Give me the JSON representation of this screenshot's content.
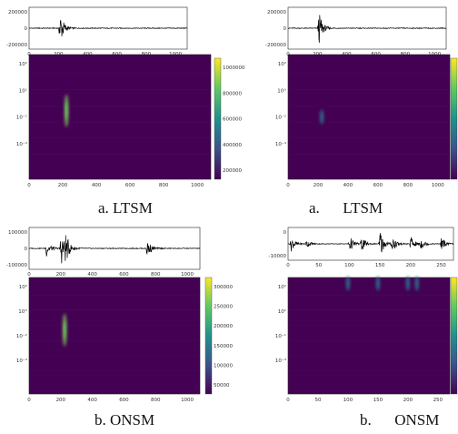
{
  "panels": [
    {
      "id": "tl",
      "caption": "a. LTSM",
      "wave_yticks": [
        "200000",
        "0",
        "-200000"
      ],
      "wave_xticks": [
        "0",
        "200",
        "400",
        "600",
        "800",
        "1000"
      ],
      "wave_bursts": [
        [
          210,
          1.0
        ]
      ],
      "spec_yticks": [
        "10²",
        "10¹",
        "10⁻¹",
        "10⁻³"
      ],
      "spec_xticks": [
        "0",
        "200",
        "400",
        "600",
        "800",
        "1000"
      ],
      "colorbar_ticks": [
        "1000000",
        "800000",
        "600000",
        "400000",
        "200000"
      ],
      "hotspots": [
        [
          222,
          0.55,
          1.0
        ]
      ]
    },
    {
      "id": "tr",
      "caption": "a.      LTSM",
      "wave_yticks": [
        "200000",
        "0",
        "-200000"
      ],
      "wave_xticks": [
        "0",
        "200",
        "400",
        "600",
        "800",
        "1000"
      ],
      "wave_bursts": [
        [
          210,
          0.9
        ]
      ],
      "spec_yticks": [
        "10²",
        "10°",
        "10⁻²",
        "10⁻⁴"
      ],
      "spec_xticks": [
        "0",
        "200",
        "400",
        "600",
        "800",
        "1000"
      ],
      "colorbar_ticks": [],
      "hotspots": [
        [
          225,
          0.5,
          0.5
        ]
      ]
    },
    {
      "id": "bl",
      "caption": "b. ONSM",
      "wave_yticks": [
        "100000",
        "0",
        "-100000"
      ],
      "wave_xticks": [
        "0",
        "200",
        "400",
        "600",
        "800",
        "1000"
      ],
      "wave_bursts": [
        [
          110,
          0.45
        ],
        [
          200,
          1.0
        ],
        [
          230,
          0.6
        ],
        [
          745,
          0.5
        ]
      ],
      "spec_yticks": [
        "10²",
        "10°",
        "10⁻²",
        "10⁻⁴"
      ],
      "spec_xticks": [
        "0",
        "200",
        "400",
        "600",
        "800",
        "1000"
      ],
      "colorbar_ticks": [
        "300000",
        "250000",
        "200000",
        "150000",
        "100000",
        "50000"
      ],
      "hotspots": [
        [
          225,
          0.55,
          0.85
        ]
      ]
    },
    {
      "id": "br",
      "caption": "b.      ONSM",
      "wave_yticks": [
        "0",
        "-10000"
      ],
      "wave_xticks": [
        "0",
        "50",
        "100",
        "150",
        "200",
        "250"
      ],
      "wave_bursts": [
        [
          5,
          0.5
        ],
        [
          30,
          0.3
        ],
        [
          100,
          0.6
        ],
        [
          120,
          0.5
        ],
        [
          150,
          1.0
        ],
        [
          170,
          0.7
        ],
        [
          200,
          0.55
        ],
        [
          215,
          0.5
        ],
        [
          250,
          0.45
        ]
      ],
      "spec_yticks": [
        "10²",
        "10¹",
        "10⁻¹",
        "10⁻³"
      ],
      "spec_xticks": [
        "0",
        "50",
        "100",
        "150",
        "200",
        "250"
      ],
      "colorbar_ticks": [],
      "hotspots": [
        [
          100,
          0.95,
          0.4
        ],
        [
          150,
          0.95,
          0.5
        ],
        [
          200,
          0.95,
          0.4
        ],
        [
          215,
          0.95,
          0.35
        ]
      ]
    }
  ],
  "colors": {
    "background": "#440154",
    "mid": "#21918c",
    "high": "#fde725",
    "trace": "#000000"
  }
}
